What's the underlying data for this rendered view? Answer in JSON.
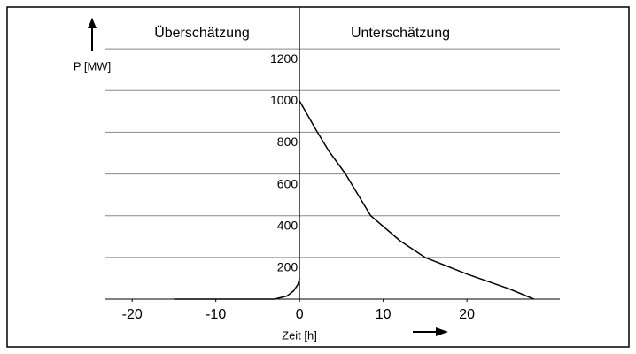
{
  "chart_data": {
    "type": "line",
    "annotations": [
      "Überschätzung",
      "Unterschätzung"
    ],
    "y_label": "P [MW]",
    "x_label": "Zeit [h]",
    "x": [
      -15,
      -11,
      -3,
      -1.5,
      -0.7,
      -0.2,
      0,
      null,
      0,
      1,
      2,
      3.5,
      5.5,
      8.5,
      12,
      15,
      20,
      25,
      28
    ],
    "values": [
      0,
      0,
      0,
      15,
      40,
      70,
      100,
      null,
      950,
      880,
      810,
      710,
      600,
      400,
      280,
      200,
      120,
      50,
      0
    ],
    "color": "#000000",
    "xlim": [
      -23.3,
      31.1
    ],
    "xticks": [
      -20,
      -10,
      0,
      10,
      20
    ],
    "ylim": [
      0,
      1400
    ],
    "yticks": [
      200,
      400,
      600,
      800,
      1000,
      1200
    ],
    "grid": true
  }
}
